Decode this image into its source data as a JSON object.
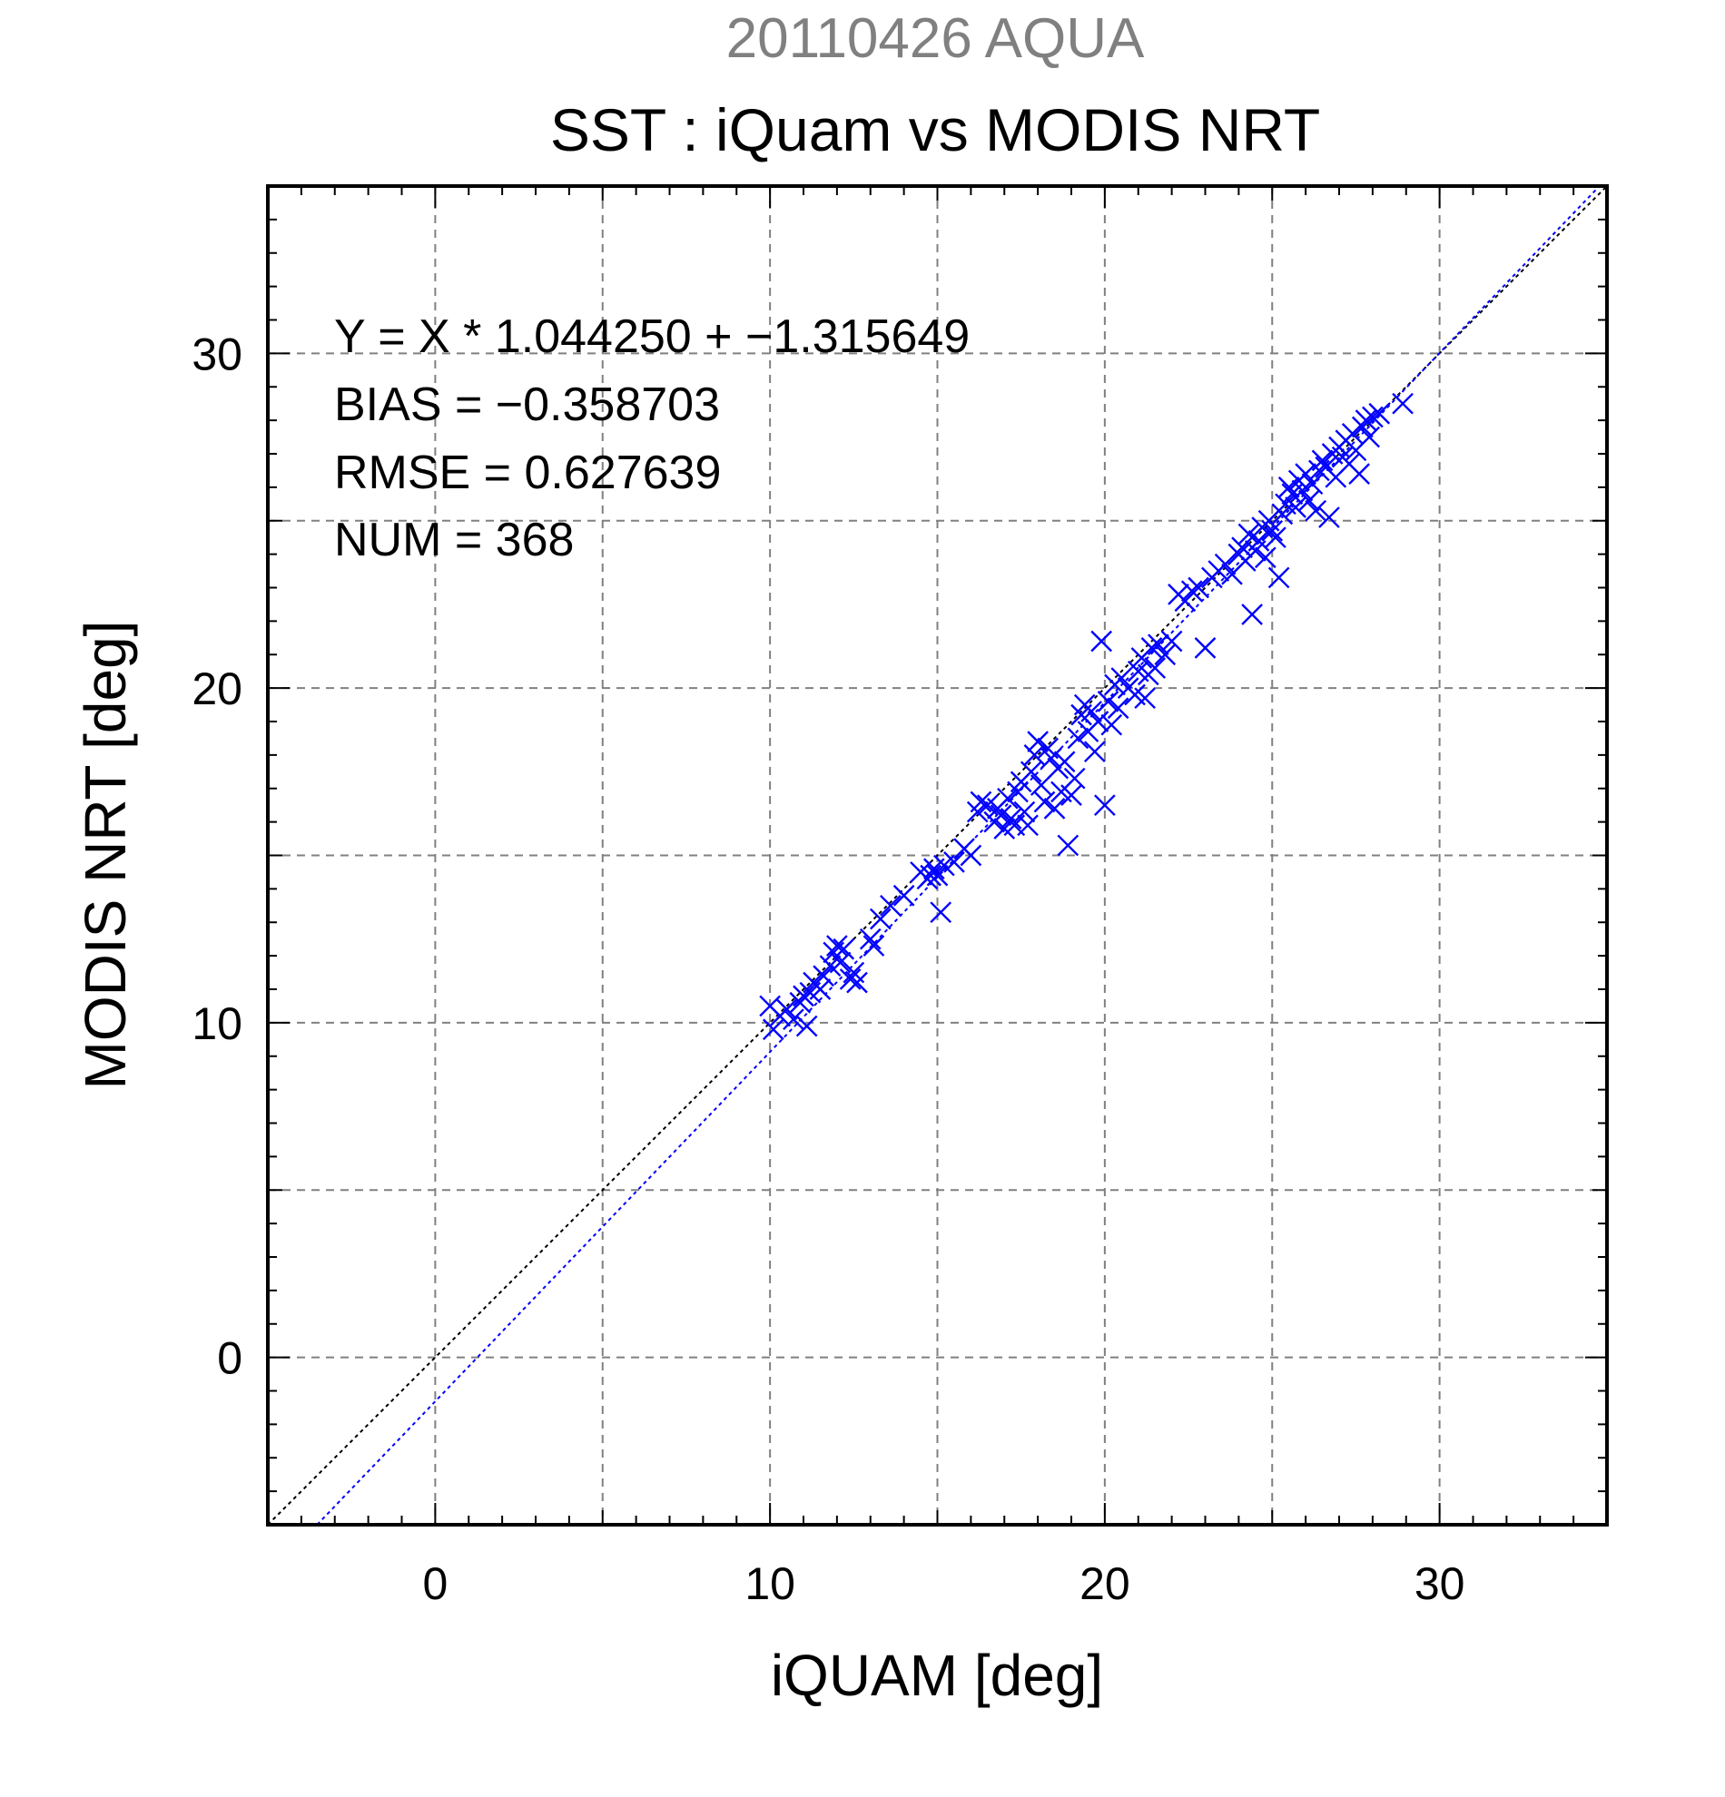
{
  "chart_data": {
    "type": "scatter",
    "suptitle": "20110426 AQUA",
    "title": "SST : iQuam vs MODIS NRT",
    "xlabel": "iQUAM [deg]",
    "ylabel": "MODIS NRT [deg]",
    "xlim": [
      -5,
      35
    ],
    "ylim": [
      -5,
      35
    ],
    "xticks": [
      0,
      10,
      20,
      30
    ],
    "yticks": [
      0,
      10,
      20,
      30
    ],
    "xtick_labels": [
      "0",
      "10",
      "20",
      "30"
    ],
    "ytick_labels": [
      "0",
      "10",
      "20",
      "30"
    ],
    "grid": true,
    "marker_color": "#0000ff",
    "stats": {
      "equation": "Y = X * 1.044250 + −1.315649",
      "bias": "BIAS = −0.358703",
      "rmse": "RMSE = 0.627639",
      "num": "NUM = 368"
    },
    "fit_line": {
      "slope": 1.04425,
      "intercept": -1.315649,
      "color": "#0000ff"
    },
    "reference_line": {
      "slope": 1,
      "intercept": 0,
      "color": "#000000"
    },
    "points": [
      [
        10.0,
        10.5
      ],
      [
        10.1,
        9.8
      ],
      [
        10.3,
        10.2
      ],
      [
        10.5,
        10.4
      ],
      [
        10.7,
        10.1
      ],
      [
        10.9,
        10.6
      ],
      [
        11.0,
        10.8
      ],
      [
        11.1,
        9.9
      ],
      [
        11.2,
        10.9
      ],
      [
        11.3,
        11.2
      ],
      [
        11.5,
        11.0
      ],
      [
        11.6,
        11.4
      ],
      [
        11.8,
        11.7
      ],
      [
        11.9,
        12.1
      ],
      [
        12.0,
        12.3
      ],
      [
        12.1,
        11.8
      ],
      [
        12.2,
        12.2
      ],
      [
        12.4,
        11.3
      ],
      [
        12.5,
        11.5
      ],
      [
        12.6,
        11.2
      ],
      [
        13.0,
        12.5
      ],
      [
        13.1,
        12.3
      ],
      [
        13.3,
        13.1
      ],
      [
        13.6,
        13.5
      ],
      [
        14.0,
        13.8
      ],
      [
        14.5,
        14.5
      ],
      [
        14.7,
        14.3
      ],
      [
        14.8,
        14.4
      ],
      [
        14.9,
        14.6
      ],
      [
        15.0,
        14.4
      ],
      [
        15.1,
        13.3
      ],
      [
        15.2,
        14.7
      ],
      [
        15.5,
        14.8
      ],
      [
        15.8,
        15.2
      ],
      [
        16.0,
        15.0
      ],
      [
        16.2,
        16.3
      ],
      [
        16.3,
        16.6
      ],
      [
        16.5,
        16.5
      ],
      [
        16.7,
        16.0
      ],
      [
        16.8,
        16.4
      ],
      [
        16.9,
        16.2
      ],
      [
        17.0,
        15.8
      ],
      [
        17.1,
        16.7
      ],
      [
        17.2,
        16.1
      ],
      [
        17.3,
        15.9
      ],
      [
        17.4,
        16.9
      ],
      [
        17.5,
        17.2
      ],
      [
        17.6,
        16.3
      ],
      [
        17.7,
        15.9
      ],
      [
        17.8,
        17.5
      ],
      [
        17.9,
        18.0
      ],
      [
        18.0,
        18.4
      ],
      [
        18.1,
        17.1
      ],
      [
        18.2,
        16.6
      ],
      [
        18.3,
        18.2
      ],
      [
        18.4,
        17.9
      ],
      [
        18.5,
        16.4
      ],
      [
        18.6,
        17.6
      ],
      [
        18.7,
        16.9
      ],
      [
        18.8,
        17.8
      ],
      [
        18.9,
        15.3
      ],
      [
        19.0,
        16.8
      ],
      [
        19.1,
        17.3
      ],
      [
        19.2,
        18.5
      ],
      [
        19.3,
        19.2
      ],
      [
        19.4,
        19.5
      ],
      [
        19.5,
        18.7
      ],
      [
        19.6,
        19.3
      ],
      [
        19.7,
        18.1
      ],
      [
        19.8,
        19.0
      ],
      [
        19.9,
        21.4
      ],
      [
        20.0,
        16.5
      ],
      [
        20.1,
        19.6
      ],
      [
        20.2,
        18.9
      ],
      [
        20.3,
        20.1
      ],
      [
        20.4,
        19.4
      ],
      [
        20.5,
        20.3
      ],
      [
        20.7,
        20.0
      ],
      [
        20.9,
        19.8
      ],
      [
        21.0,
        20.5
      ],
      [
        21.1,
        20.9
      ],
      [
        21.2,
        19.7
      ],
      [
        21.3,
        20.4
      ],
      [
        21.4,
        21.2
      ],
      [
        21.5,
        20.6
      ],
      [
        21.6,
        21.3
      ],
      [
        21.8,
        21.0
      ],
      [
        22.0,
        21.4
      ],
      [
        22.2,
        22.8
      ],
      [
        22.4,
        22.6
      ],
      [
        22.6,
        22.9
      ],
      [
        22.8,
        23.0
      ],
      [
        23.0,
        21.2
      ],
      [
        23.2,
        23.3
      ],
      [
        23.4,
        23.5
      ],
      [
        23.6,
        23.7
      ],
      [
        23.8,
        23.4
      ],
      [
        24.0,
        24.0
      ],
      [
        24.1,
        24.2
      ],
      [
        24.2,
        23.8
      ],
      [
        24.3,
        24.6
      ],
      [
        24.4,
        22.2
      ],
      [
        24.5,
        24.1
      ],
      [
        24.6,
        24.4
      ],
      [
        24.7,
        24.8
      ],
      [
        24.8,
        23.9
      ],
      [
        24.9,
        25.0
      ],
      [
        25.0,
        24.7
      ],
      [
        25.1,
        24.5
      ],
      [
        25.2,
        23.3
      ],
      [
        25.3,
        25.2
      ],
      [
        25.4,
        25.5
      ],
      [
        25.5,
        26.0
      ],
      [
        25.6,
        25.8
      ],
      [
        25.7,
        25.4
      ],
      [
        25.8,
        26.2
      ],
      [
        25.9,
        25.9
      ],
      [
        26.0,
        26.4
      ],
      [
        26.1,
        25.6
      ],
      [
        26.2,
        26.1
      ],
      [
        26.3,
        25.3
      ],
      [
        26.4,
        26.5
      ],
      [
        26.5,
        26.8
      ],
      [
        26.6,
        26.6
      ],
      [
        26.7,
        25.1
      ],
      [
        26.8,
        27.0
      ],
      [
        26.9,
        26.3
      ],
      [
        27.0,
        27.2
      ],
      [
        27.1,
        26.9
      ],
      [
        27.2,
        27.4
      ],
      [
        27.3,
        26.7
      ],
      [
        27.4,
        27.6
      ],
      [
        27.5,
        27.1
      ],
      [
        27.6,
        26.4
      ],
      [
        27.7,
        27.8
      ],
      [
        27.8,
        28.0
      ],
      [
        27.9,
        27.5
      ],
      [
        28.0,
        28.1
      ],
      [
        28.2,
        28.2
      ],
      [
        28.9,
        28.5
      ]
    ]
  }
}
